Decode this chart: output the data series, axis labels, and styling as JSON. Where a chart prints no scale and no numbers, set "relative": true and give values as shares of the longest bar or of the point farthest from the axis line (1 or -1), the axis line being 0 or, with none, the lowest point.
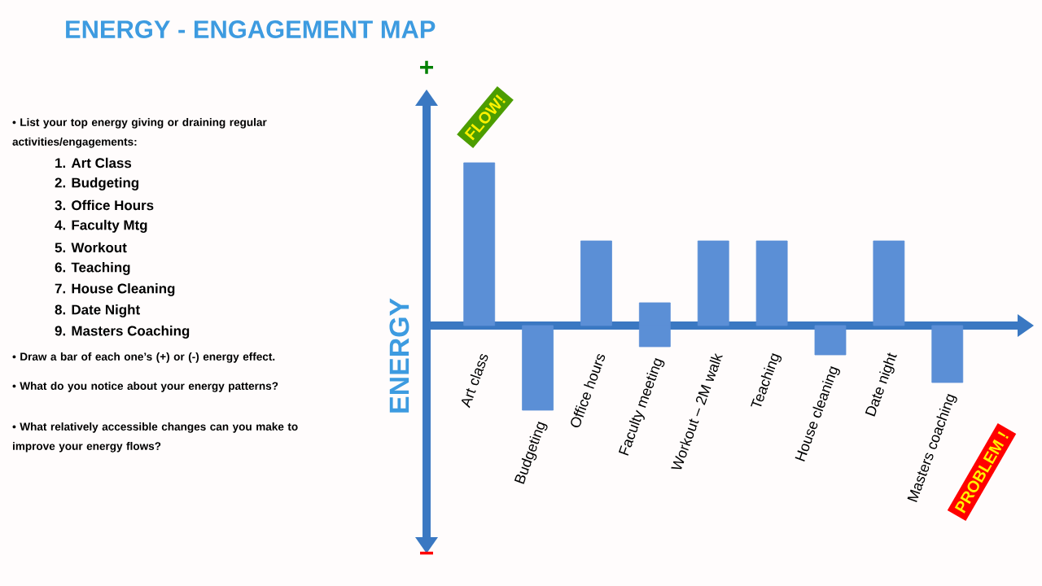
{
  "chart_data": {
    "type": "bar",
    "title": "ENERGY - ENGAGEMENT MAP",
    "ylabel": "ENERGY",
    "relative": true,
    "stacked": true,
    "categories": [
      "Art class",
      "Budgeting",
      "Office hours",
      "Faculty meeting",
      "Workout – 2M walk",
      "Teaching",
      "House cleaning",
      "Date night",
      "Masters coaching"
    ],
    "series": [
      {
        "color": "#5b8fd6",
        "values": [
          1,
          null,
          0.52,
          0.14,
          0.52,
          0.52,
          null,
          0.52,
          null
        ]
      },
      {
        "color": "#5b8fd6",
        "values": [
          null,
          -0.52,
          null,
          -0.13,
          null,
          null,
          -0.18,
          null,
          -0.35
        ]
      }
    ],
    "annotations": [
      "• List your top energy giving or draining regular activities/engagements:",
      "1. Art Class",
      "2. Budgeting",
      "3. Office Hours",
      "4. Faculty Mtg",
      "5. Workout",
      "6. Teaching",
      "7. House Cleaning",
      "8. Date Night",
      "9. Masters Coaching",
      "• Draw a bar of each one’s (+) or (-) energy effect.",
      "• What do you notice about your energy patterns?",
      "• What relatively accessible changes can you make to improve your energy flows?",
      "+",
      "−",
      "FLOW!",
      "PROBLEM !"
    ]
  }
}
